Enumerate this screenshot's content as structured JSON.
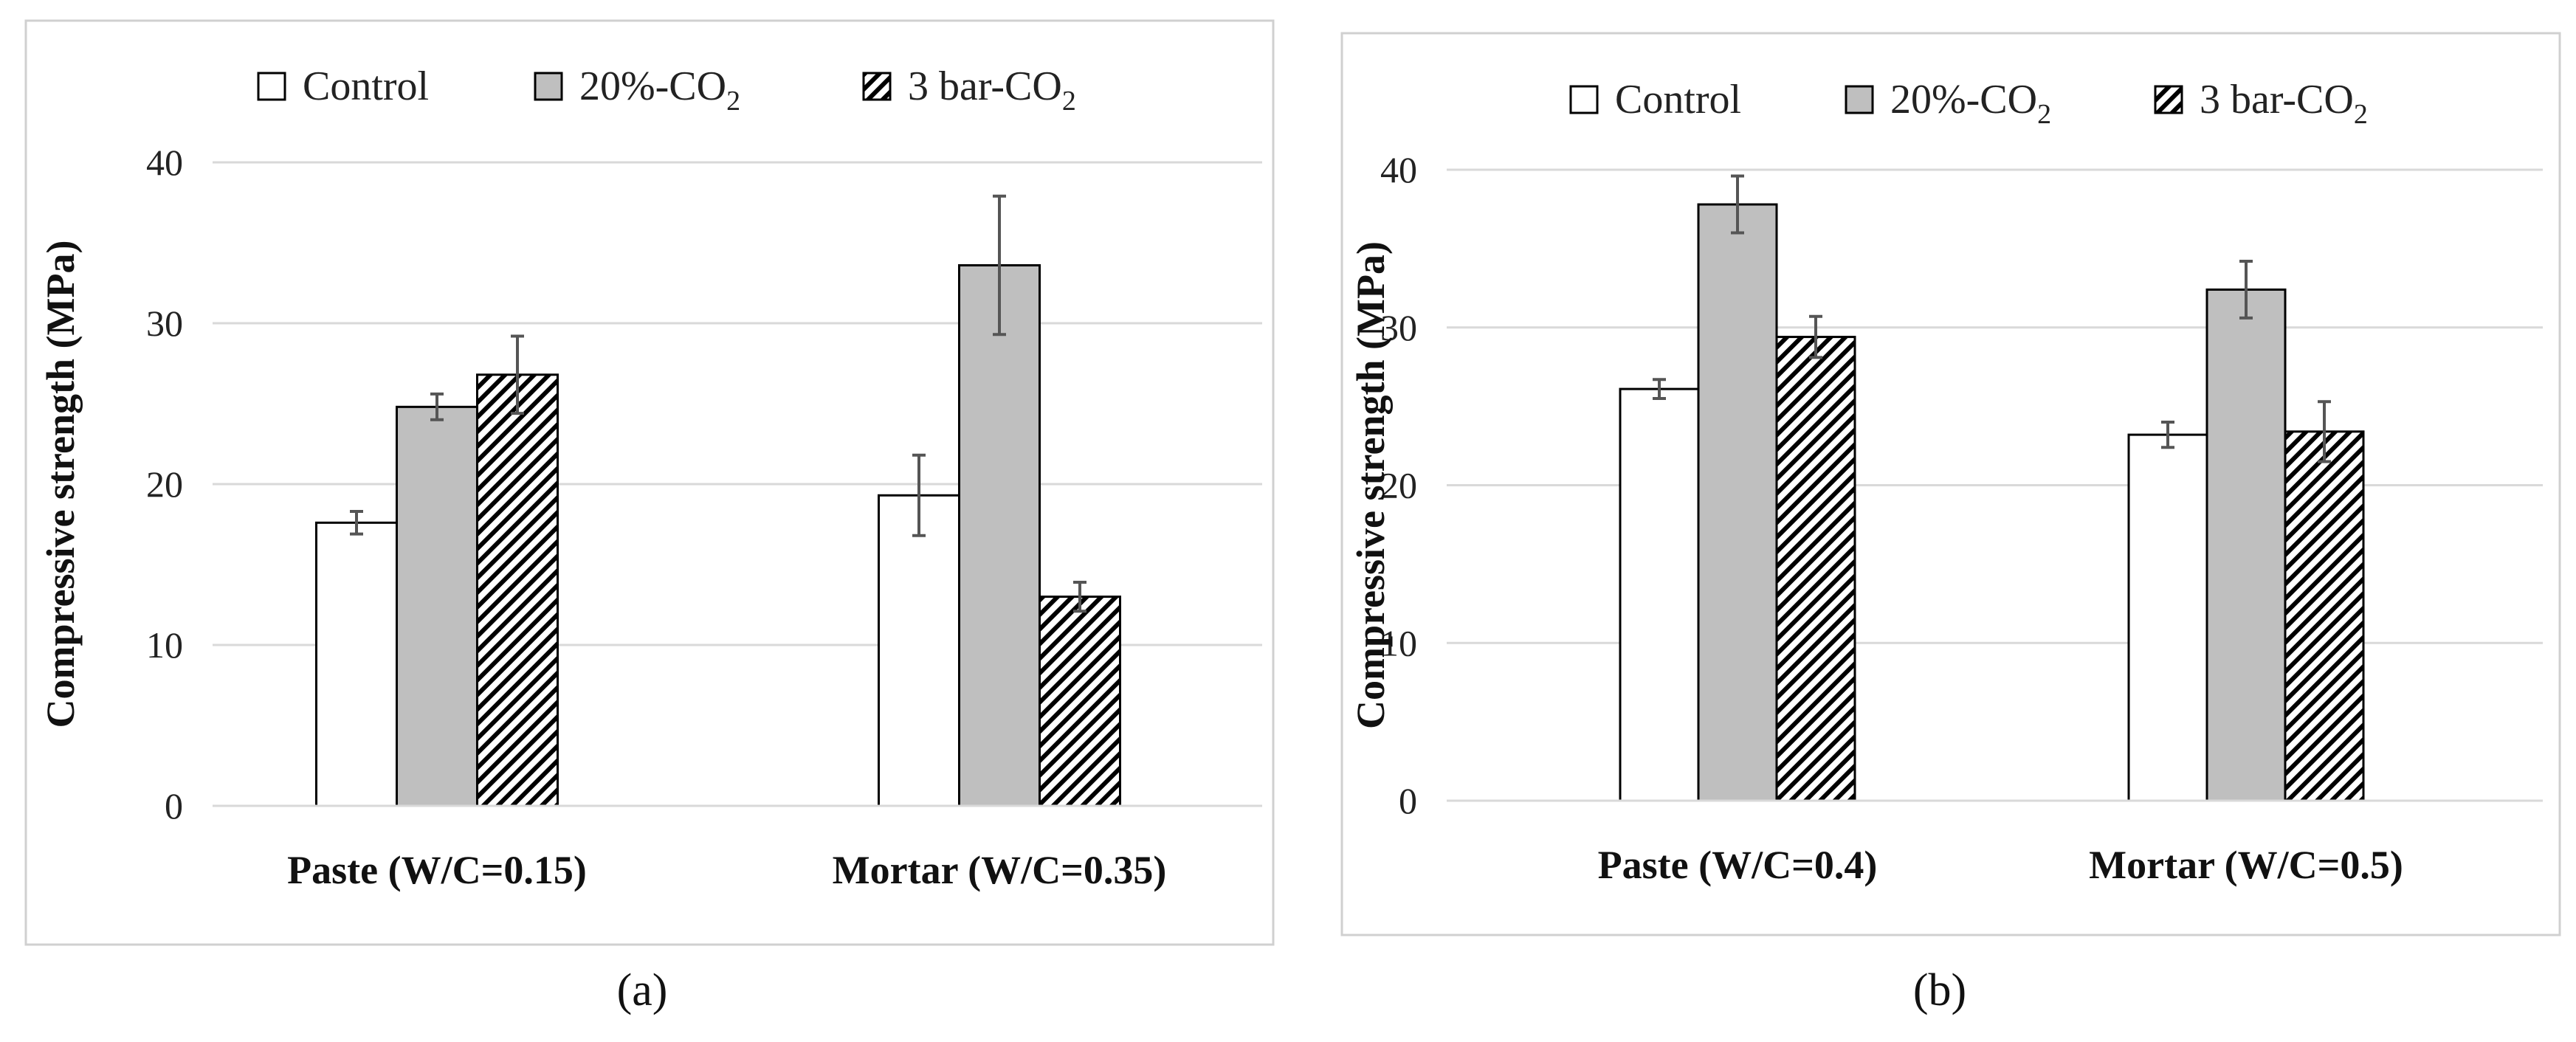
{
  "chart_data": [
    {
      "type": "bar",
      "panel_label": "(a)",
      "categories": [
        "Paste (W/C=0.15)",
        "Mortar (W/C=0.35)"
      ],
      "series": [
        {
          "name": "Control",
          "name_main": "Control",
          "name_sub": "",
          "values": [
            17.6,
            19.3
          ],
          "errors": [
            0.7,
            2.5
          ]
        },
        {
          "name": "20%-CO2",
          "name_main": "20%-CO",
          "name_sub": "2",
          "values": [
            24.8,
            33.6
          ],
          "errors": [
            0.8,
            4.3
          ]
        },
        {
          "name": "3 bar-CO2",
          "name_main": "3 bar-CO",
          "name_sub": "2",
          "values": [
            26.8,
            13.0
          ],
          "errors": [
            2.4,
            0.9
          ]
        }
      ],
      "xlabel": "",
      "ylabel": "Compressive strength (MPa)",
      "ylim": [
        0,
        40
      ],
      "yticks": [
        0,
        10,
        20,
        30,
        40
      ],
      "grid": true,
      "legend": "top"
    },
    {
      "type": "bar",
      "panel_label": "(b)",
      "categories": [
        "Paste (W/C=0.4)",
        "Mortar (W/C=0.5)"
      ],
      "series": [
        {
          "name": "Control",
          "name_main": "Control",
          "name_sub": "",
          "values": [
            26.1,
            23.2
          ],
          "errors": [
            0.6,
            0.8
          ]
        },
        {
          "name": "20%-CO2",
          "name_main": "20%-CO",
          "name_sub": "2",
          "values": [
            37.8,
            32.4
          ],
          "errors": [
            1.8,
            1.8
          ]
        },
        {
          "name": "3 bar-CO2",
          "name_main": "3 bar-CO",
          "name_sub": "2",
          "values": [
            29.4,
            23.4
          ],
          "errors": [
            1.3,
            1.9
          ]
        }
      ],
      "xlabel": "",
      "ylabel": "Compressive strength (MPa)",
      "ylim": [
        0,
        40
      ],
      "yticks": [
        0,
        10,
        20,
        30,
        40
      ],
      "grid": true,
      "legend": "top"
    }
  ],
  "colors": {
    "control_fill": "#ffffff",
    "co2_20_fill": "#bfbfbf",
    "hatch_bg": "#ffffff",
    "hatch_line": "#000000",
    "bar_stroke": "#000000",
    "grid": "#d9d9d9",
    "error_bar": "#555555",
    "frame": "#d0d0d0"
  }
}
